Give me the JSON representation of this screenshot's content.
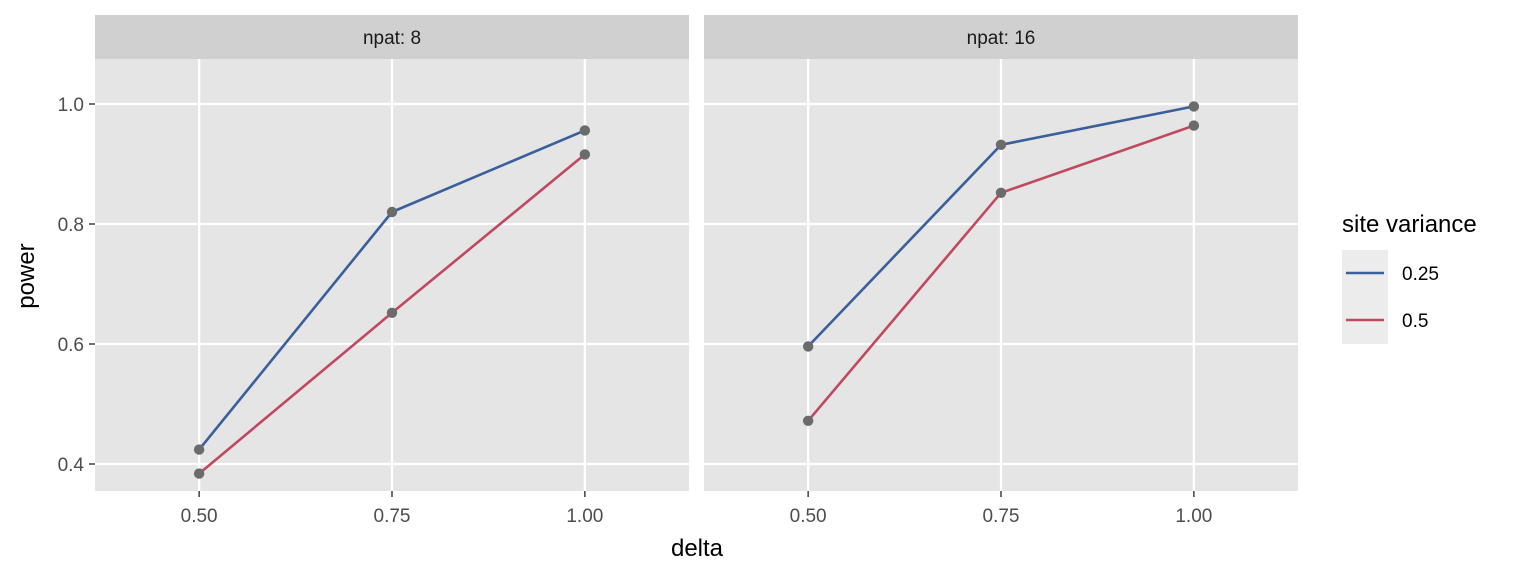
{
  "chart_data": {
    "type": "line",
    "facet_variable": "npat",
    "panels": [
      {
        "strip_label": "npat: 8",
        "series": [
          {
            "name": "0.25",
            "x": [
              0.5,
              0.75,
              1.0
            ],
            "y": [
              0.424,
              0.82,
              0.956
            ]
          },
          {
            "name": "0.5",
            "x": [
              0.5,
              0.75,
              1.0
            ],
            "y": [
              0.384,
              0.652,
              0.916
            ]
          }
        ]
      },
      {
        "strip_label": "npat: 16",
        "series": [
          {
            "name": "0.25",
            "x": [
              0.5,
              0.75,
              1.0
            ],
            "y": [
              0.596,
              0.932,
              0.996
            ]
          },
          {
            "name": "0.5",
            "x": [
              0.5,
              0.75,
              1.0
            ],
            "y": [
              0.472,
              0.852,
              0.964
            ]
          }
        ]
      }
    ],
    "xlabel": "delta",
    "ylabel": "power",
    "x_ticks": [
      "0.50",
      "0.75",
      "1.00"
    ],
    "x_tick_values": [
      0.5,
      0.75,
      1.0
    ],
    "y_ticks": [
      "0.4",
      "0.6",
      "0.8",
      "1.0"
    ],
    "y_tick_values": [
      0.4,
      0.6,
      0.8,
      1.0
    ],
    "xlim": [
      0.365,
      1.135
    ],
    "ylim": [
      0.355,
      1.075
    ],
    "grid": true,
    "legend": {
      "title": "site variance",
      "placement": "right",
      "entries": [
        {
          "label": "0.25",
          "color": "#3a5f9a"
        },
        {
          "label": "0.5",
          "color": "#c0485f"
        }
      ]
    },
    "point_color": "#6b6b6b",
    "panel_background": "#e5e5e5",
    "strip_background": "#d0d0d0",
    "grid_color": "#ffffff"
  }
}
